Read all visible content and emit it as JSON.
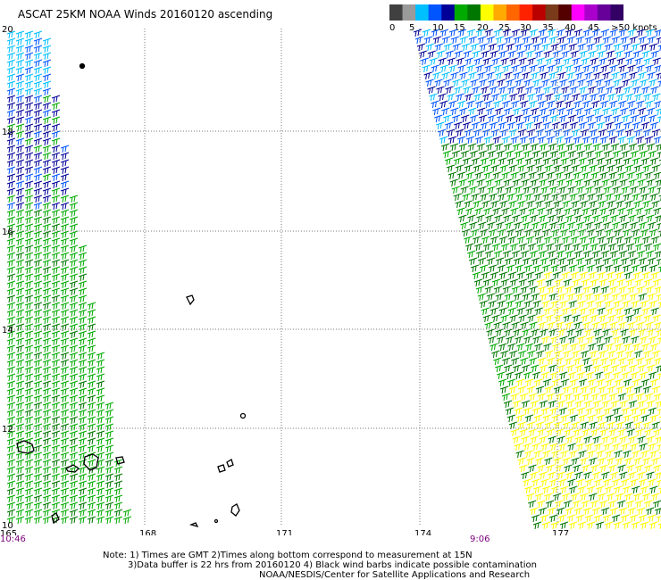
{
  "title": "ASCAT 25KM NOAA Winds 20160120 ascending",
  "colorbar": {
    "labels": [
      "0",
      "5",
      "10",
      "15",
      "20",
      "25",
      "30",
      "35",
      "40",
      "45",
      ">50 knots"
    ],
    "colors": [
      "#404040",
      "#9a9a9a",
      "#00bfff",
      "#0055ff",
      "#000099",
      "#00aa00",
      "#007700",
      "#ffff00",
      "#ffaa00",
      "#ff6600",
      "#ff2200",
      "#bb0000",
      "#7a3b1a",
      "#550000",
      "#ff00ff",
      "#aa00cc",
      "#660099",
      "#330066"
    ]
  },
  "map": {
    "lat_labels": [
      "20",
      "18",
      "16",
      "14",
      "12",
      "10"
    ],
    "lon_labels": [
      "165",
      "168",
      "171",
      "174",
      "177"
    ],
    "time_labels": [
      "10:46",
      "9:06"
    ]
  },
  "notes": [
    "Note: 1) Times are GMT 2)Times along bottom correspond to measurement at 15N",
    "3)Data buffer is 22 hrs from 20160120 4) Black wind barbs indicate possible contamination",
    "NOAA/NESDIS/Center for Satellite Applications and Research"
  ]
}
